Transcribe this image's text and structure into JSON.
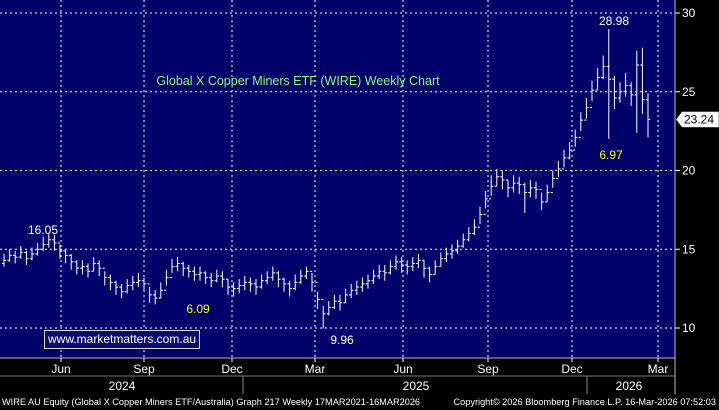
{
  "chart_data": {
    "type": "ohlc",
    "title": "Global X Copper Miners ETF (WIRE) Weekly Chart",
    "ylim": [
      8,
      31
    ],
    "yticks": [
      10,
      15,
      20,
      25,
      30
    ],
    "xlabels": [
      "Jun",
      "Sep",
      "Dec",
      "Mar",
      "Jun",
      "Sep",
      "Dec",
      "Mar"
    ],
    "years": [
      "2024",
      "2025",
      "2026"
    ],
    "last_price": "23.24",
    "annotations": [
      {
        "text": "16.05",
        "color": "#ffffff"
      },
      {
        "text": "6.09",
        "color": "#ffff00"
      },
      {
        "text": "9.96",
        "color": "#ffffff"
      },
      {
        "text": "6.97",
        "color": "#ffff00"
      },
      {
        "text": "28.98",
        "color": "#ffffff"
      }
    ],
    "weekly_close": [
      14.3,
      14.6,
      14.5,
      14.8,
      14.4,
      14.7,
      15.0,
      15.3,
      15.6,
      15.4,
      14.9,
      14.6,
      14.2,
      13.8,
      13.9,
      13.6,
      14.1,
      13.8,
      13.2,
      12.9,
      12.6,
      12.3,
      12.7,
      12.9,
      13.0,
      12.8,
      12.1,
      11.9,
      12.4,
      13.2,
      13.9,
      14.1,
      13.8,
      13.6,
      13.4,
      13.5,
      13.2,
      13.0,
      13.3,
      13.1,
      12.6,
      12.5,
      12.7,
      12.9,
      12.8,
      12.6,
      13.0,
      13.2,
      13.5,
      13.1,
      12.8,
      12.5,
      12.9,
      13.3,
      13.6,
      12.9,
      11.8,
      10.9,
      11.3,
      11.7,
      11.6,
      12.1,
      12.4,
      12.6,
      12.8,
      13.0,
      13.3,
      13.6,
      13.5,
      13.9,
      14.2,
      14.0,
      13.9,
      14.1,
      14.3,
      13.8,
      13.4,
      13.9,
      14.4,
      14.7,
      14.9,
      15.2,
      15.6,
      16.0,
      16.4,
      17.2,
      18.2,
      19.0,
      19.6,
      19.4,
      18.9,
      19.2,
      19.1,
      18.6,
      18.9,
      18.8,
      18.0,
      18.6,
      19.5,
      20.1,
      20.8,
      21.3,
      22.1,
      23.2,
      24.0,
      25.1,
      25.9,
      26.6,
      25.8,
      24.6,
      25.0,
      25.4,
      24.8,
      26.7,
      24.5,
      23.24
    ],
    "weekly_high": [
      14.7,
      15.0,
      14.9,
      15.2,
      14.9,
      15.1,
      15.4,
      15.8,
      16.05,
      15.9,
      15.3,
      15.0,
      14.7,
      14.3,
      14.3,
      14.1,
      14.5,
      14.3,
      13.6,
      13.4,
      13.0,
      12.8,
      13.1,
      13.3,
      13.5,
      13.2,
      12.6,
      12.4,
      12.9,
      13.7,
      14.4,
      14.5,
      14.2,
      14.0,
      13.9,
      13.9,
      13.6,
      13.5,
      13.7,
      13.6,
      13.1,
      12.9,
      13.1,
      13.3,
      13.2,
      13.1,
      13.4,
      13.6,
      13.9,
      13.6,
      13.2,
      13.0,
      13.4,
      13.7,
      13.9,
      13.5,
      12.3,
      11.4,
      11.7,
      12.1,
      12.1,
      12.5,
      12.8,
      13.0,
      13.2,
      13.4,
      13.7,
      14.0,
      14.0,
      14.3,
      14.6,
      14.5,
      14.3,
      14.5,
      14.7,
      14.3,
      13.9,
      14.3,
      14.8,
      15.1,
      15.3,
      15.6,
      16.0,
      16.4,
      16.9,
      17.7,
      18.7,
      19.7,
      20.1,
      20.0,
      19.4,
      19.7,
      19.6,
      19.2,
      19.4,
      19.3,
      18.6,
      19.1,
      20.0,
      20.6,
      21.3,
      21.8,
      22.6,
      23.7,
      24.6,
      25.7,
      26.5,
      27.3,
      28.98,
      26.0,
      25.6,
      26.2,
      25.6,
      27.6,
      27.8,
      24.9
    ],
    "weekly_low": [
      13.9,
      14.2,
      14.1,
      14.4,
      14.0,
      14.3,
      14.6,
      14.9,
      15.1,
      14.9,
      14.4,
      14.1,
      13.7,
      13.4,
      13.4,
      13.2,
      13.6,
      13.3,
      12.7,
      12.4,
      12.1,
      11.9,
      12.2,
      12.4,
      12.6,
      12.3,
      11.6,
      11.5,
      11.9,
      12.7,
      13.5,
      13.6,
      13.3,
      13.2,
      13.0,
      13.0,
      12.8,
      12.6,
      12.9,
      12.6,
      12.1,
      12.0,
      12.2,
      12.4,
      12.3,
      12.1,
      12.5,
      12.8,
      13.0,
      12.6,
      12.3,
      12.0,
      12.4,
      12.8,
      13.1,
      12.3,
      11.2,
      9.96,
      10.8,
      11.2,
      11.1,
      11.6,
      11.9,
      12.1,
      12.3,
      12.5,
      12.8,
      13.1,
      13.0,
      13.4,
      13.7,
      13.5,
      13.4,
      13.6,
      13.8,
      13.2,
      12.9,
      13.4,
      13.9,
      14.2,
      14.4,
      14.7,
      15.1,
      15.5,
      15.9,
      16.6,
      17.6,
      18.4,
      19.0,
      18.8,
      18.3,
      18.6,
      18.5,
      17.3,
      18.3,
      18.2,
      17.5,
      18.0,
      18.9,
      19.6,
      20.2,
      20.7,
      21.5,
      22.5,
      23.3,
      24.4,
      25.1,
      25.8,
      22.0,
      23.9,
      24.3,
      24.7,
      24.1,
      22.4,
      23.6,
      22.1
    ],
    "grid": true,
    "y_axis": "right"
  },
  "footer": {
    "left": "WIRE AU Equity (Global X Copper Miners ETF/Australia) Graph 217 Weekly 17MAR2021-16MAR2026",
    "right": "Copyright© 2026 Bloomberg Finance L.P.   16-Mar-2026 07:52:03"
  },
  "watermark": "www.marketmatters.com.au",
  "colors": {
    "background": "#00006b",
    "axis_background": "#000000",
    "bars": "#ffffff",
    "title": "#7fff7f",
    "highlight": "#ffff00"
  }
}
